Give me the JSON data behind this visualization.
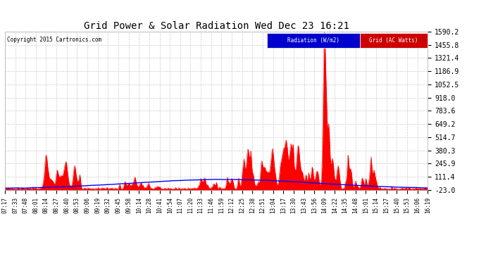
{
  "title": "Grid Power & Solar Radiation Wed Dec 23 16:21",
  "copyright": "Copyright 2015 Cartronics.com",
  "background_color": "#ffffff",
  "plot_bg_color": "#ffffff",
  "grid_color": "#cccccc",
  "y_min": -23.0,
  "y_max": 1590.2,
  "y_ticks": [
    -23.0,
    111.4,
    245.9,
    380.3,
    514.7,
    649.2,
    783.6,
    918.0,
    1052.5,
    1186.9,
    1321.4,
    1455.8,
    1590.2
  ],
  "x_tick_labels": [
    "07:17",
    "07:33",
    "07:48",
    "08:01",
    "08:14",
    "08:27",
    "08:40",
    "08:53",
    "09:06",
    "09:19",
    "09:32",
    "09:45",
    "09:58",
    "10:14",
    "10:28",
    "10:41",
    "10:54",
    "11:07",
    "11:20",
    "11:33",
    "11:46",
    "11:59",
    "12:12",
    "12:25",
    "12:38",
    "12:51",
    "13:04",
    "13:17",
    "13:30",
    "13:43",
    "13:56",
    "14:09",
    "14:22",
    "14:35",
    "14:48",
    "15:01",
    "15:14",
    "15:27",
    "15:40",
    "15:53",
    "16:06",
    "16:19"
  ],
  "radiation_color": "#0000ff",
  "grid_power_color": "#ff0000",
  "legend_radiation_bg": "#0000cc",
  "legend_grid_bg": "#cc0000",
  "legend_radiation_label": "Radiation (W/m2)",
  "legend_grid_label": "Grid (AC Watts)",
  "figwidth": 6.9,
  "figheight": 3.75,
  "dpi": 100
}
